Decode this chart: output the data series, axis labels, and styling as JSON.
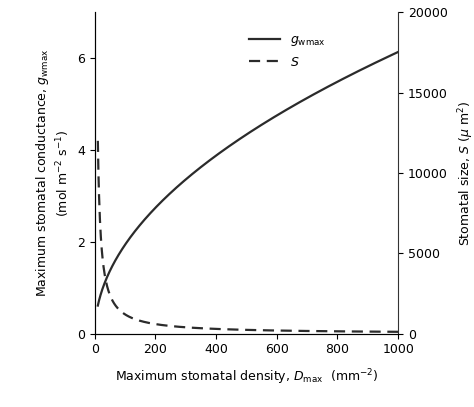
{
  "x_min": 0,
  "x_max": 1000,
  "y_left_min": 0,
  "y_left_max": 7,
  "y_right_min": 0,
  "y_right_max": 20000,
  "line_color": "#2b2b2b",
  "D_start": 10,
  "D_end": 1000,
  "n_points": 1000,
  "gwmax_scale": 0.194,
  "gwmax_power": 0.5,
  "S_scale": 120000.0,
  "S_power": -1.0,
  "xticks": [
    0,
    200,
    400,
    600,
    800,
    1000
  ],
  "yticks_left": [
    0,
    2,
    4,
    6
  ],
  "yticks_right": [
    0,
    5000,
    10000,
    15000,
    20000
  ],
  "fontsize": 9,
  "linewidth": 1.6
}
